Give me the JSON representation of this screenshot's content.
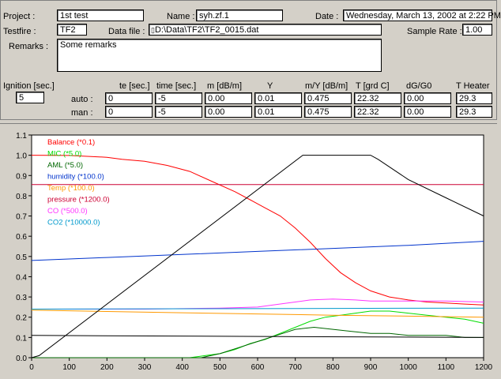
{
  "header": {
    "project_label": "Project :",
    "project_value": "1st test",
    "name_label": "Name :",
    "name_value": "syh.zf.1",
    "date_label": "Date :",
    "date_value": "Wednesday, March 13, 2002 at 2:22 PM",
    "testfire_label": "Testfire :",
    "testfire_value": "TF2",
    "datafile_label": "Data file :",
    "datafile_value": "D:\\Data\\TF2\\TF2_0015.dat",
    "samplerate_label": "Sample Rate :",
    "samplerate_value": "1.00",
    "remarks_label": "Remarks :",
    "remarks_value": "Some remarks"
  },
  "params": {
    "ignition_label": "Ignition [sec.]",
    "ignition_value": "5",
    "columns": [
      "te [sec.]",
      "time [sec.]",
      "m [dB/m]",
      "Y",
      "m/Y [dB/m]",
      "T [grd C]",
      "dG/G0",
      "T Heater"
    ],
    "auto_label": "auto :",
    "man_label": "man :",
    "auto_values": [
      "0",
      "-5",
      "0.00",
      "0.01",
      "0.475",
      "22.32",
      "0.00",
      "29.3"
    ],
    "man_values": [
      "0",
      "-5",
      "0.00",
      "0.01",
      "0.475",
      "22.32",
      "0.00",
      "29.3"
    ]
  },
  "chart_data": {
    "type": "line",
    "xlim": [
      0,
      1200
    ],
    "ylim": [
      0,
      1.1
    ],
    "xticks": [
      0,
      100,
      200,
      300,
      400,
      500,
      600,
      700,
      800,
      900,
      1000,
      1100,
      1200
    ],
    "yticks": [
      "0.0",
      "0.1",
      "0.2",
      "0.3",
      "0.4",
      "0.5",
      "0.6",
      "0.7",
      "0.8",
      "0.9",
      "1.0",
      "1.1"
    ],
    "legend_position": "top-left",
    "series": [
      {
        "name": "Balance (*0.1)",
        "color": "#ff0000",
        "x": [
          0,
          100,
          200,
          240,
          300,
          360,
          420,
          480,
          540,
          580,
          620,
          660,
          700,
          740,
          780,
          820,
          860,
          900,
          950,
          1000,
          1050,
          1100,
          1150,
          1200
        ],
        "y": [
          1.0,
          0.999,
          0.99,
          0.98,
          0.97,
          0.95,
          0.92,
          0.87,
          0.82,
          0.78,
          0.74,
          0.7,
          0.64,
          0.57,
          0.49,
          0.42,
          0.37,
          0.33,
          0.3,
          0.285,
          0.275,
          0.27,
          0.265,
          0.26
        ]
      },
      {
        "name": "MIC  (*5.0)",
        "color": "#00dd00",
        "x": [
          0,
          420,
          460,
          500,
          540,
          580,
          620,
          660,
          700,
          740,
          780,
          820,
          860,
          900,
          950,
          1000,
          1050,
          1100,
          1150,
          1200
        ],
        "y": [
          0.0,
          0.0,
          0.01,
          0.02,
          0.04,
          0.07,
          0.09,
          0.12,
          0.15,
          0.18,
          0.2,
          0.21,
          0.22,
          0.23,
          0.23,
          0.22,
          0.21,
          0.2,
          0.19,
          0.17
        ]
      },
      {
        "name": "AML  (*5.0)",
        "color": "#006600",
        "x": [
          0,
          450,
          500,
          550,
          600,
          650,
          700,
          750,
          800,
          850,
          900,
          950,
          1000,
          1050,
          1100,
          1150,
          1200
        ],
        "y": [
          0.0,
          0.0,
          0.02,
          0.05,
          0.08,
          0.11,
          0.14,
          0.15,
          0.14,
          0.13,
          0.12,
          0.12,
          0.11,
          0.11,
          0.11,
          0.1,
          0.1
        ]
      },
      {
        "name": "humidity  (*100.0)",
        "color": "#0033cc",
        "x": [
          0,
          200,
          400,
          600,
          800,
          1000,
          1200
        ],
        "y": [
          0.48,
          0.495,
          0.51,
          0.525,
          0.54,
          0.555,
          0.575
        ]
      },
      {
        "name": "Temp   (*100.0)",
        "color": "#ff9900",
        "x": [
          0,
          200,
          400,
          600,
          800,
          1000,
          1200
        ],
        "y": [
          0.235,
          0.228,
          0.222,
          0.216,
          0.21,
          0.205,
          0.2
        ]
      },
      {
        "name": "pressure  (*1200.0)",
        "color": "#cc0033",
        "x": [
          0,
          1200
        ],
        "y": [
          0.855,
          0.855
        ]
      },
      {
        "name": "CO     (*500.0)",
        "color": "#ff33ff",
        "x": [
          0,
          300,
          500,
          600,
          680,
          740,
          800,
          860,
          900,
          950,
          1000,
          1100,
          1200
        ],
        "y": [
          0.24,
          0.24,
          0.245,
          0.25,
          0.27,
          0.285,
          0.29,
          0.285,
          0.28,
          0.28,
          0.28,
          0.28,
          0.275
        ]
      },
      {
        "name": "CO2    (*10000.0)",
        "color": "#0099cc",
        "x": [
          0,
          1200
        ],
        "y": [
          0.24,
          0.245
        ]
      },
      {
        "name": "",
        "color": "#000000",
        "x": [
          0,
          20,
          720,
          740,
          900,
          920,
          1000,
          1100,
          1200
        ],
        "y": [
          0.0,
          0.01,
          1.0,
          1.0,
          1.0,
          0.98,
          0.88,
          0.79,
          0.7
        ]
      },
      {
        "name": "",
        "color": "#000000",
        "x": [
          0,
          1200
        ],
        "y": [
          0.11,
          0.1
        ]
      }
    ]
  }
}
